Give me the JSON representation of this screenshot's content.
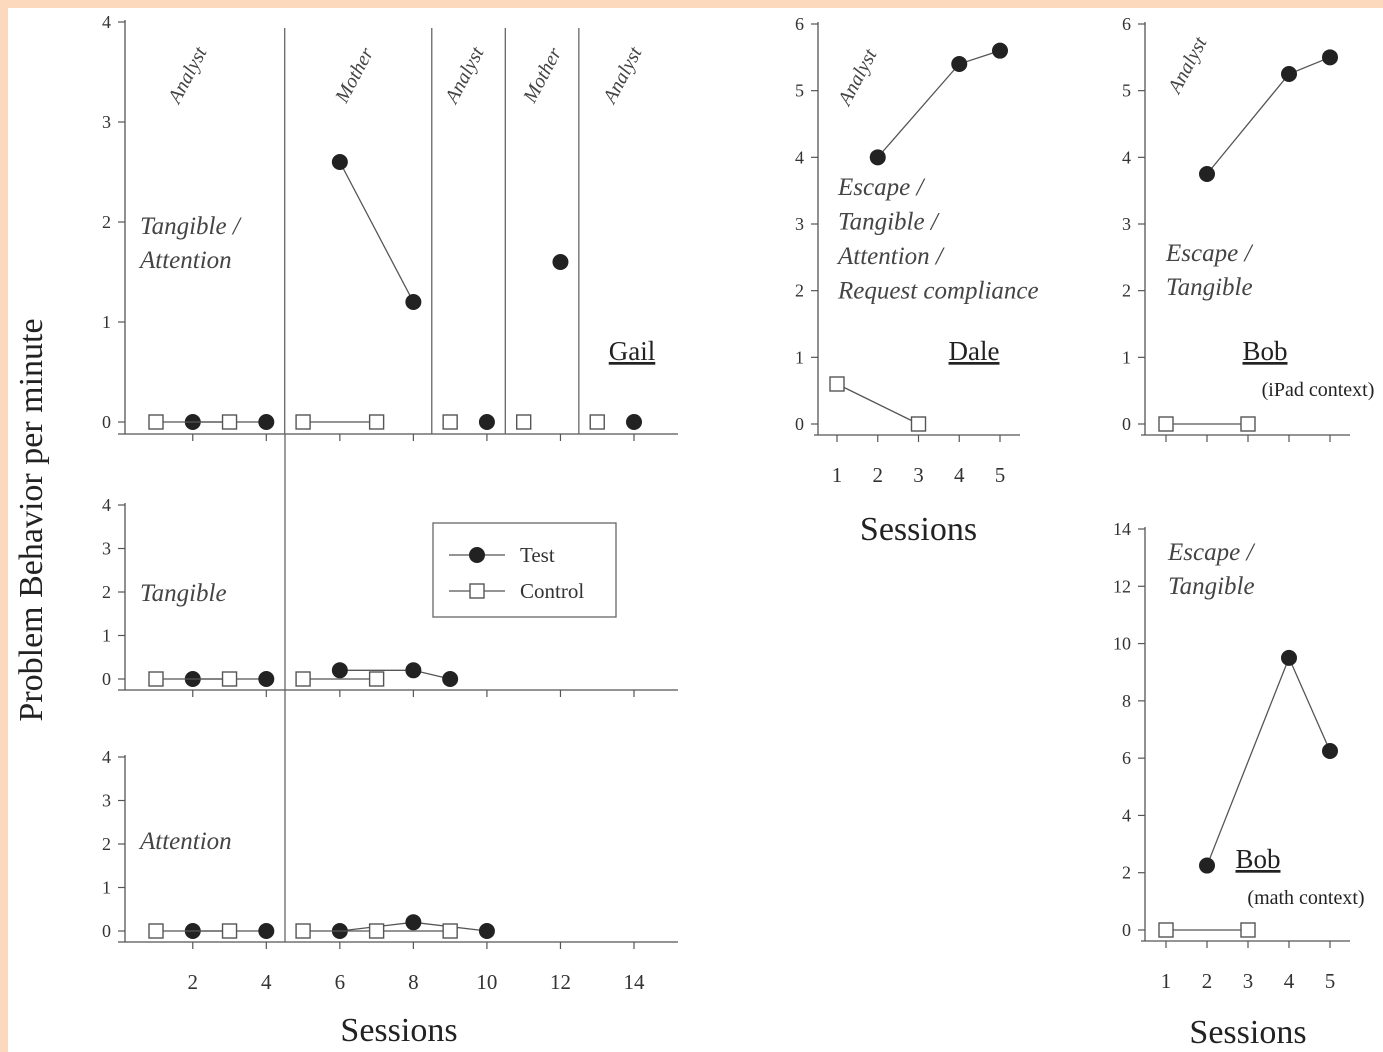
{
  "ylabel": "Problem Behavior per minute",
  "legend": {
    "test": "Test",
    "control": "Control"
  },
  "chart_data": [
    {
      "id": "gail-tangible-attention",
      "type": "scatter",
      "participant": "Gail",
      "condition": "Tangible / Attention",
      "condition_lines": [
        "Tangible /",
        "Attention"
      ],
      "ylim": [
        0,
        4
      ],
      "xlim": [
        0.5,
        15
      ],
      "yticks": [
        0,
        1,
        2,
        3,
        4
      ],
      "phases": [
        {
          "label": "Analyst",
          "x": 1.5
        },
        {
          "label": "Mother",
          "x": 6
        },
        {
          "label": "Analyst",
          "x": 10.5
        },
        {
          "label": "Mother",
          "x": 12
        },
        {
          "label": "Analyst",
          "x": 14
        }
      ],
      "phase_lines": [
        4.5,
        8.5,
        10.5,
        12.5
      ],
      "series": [
        {
          "name": "Test",
          "segments": [
            [
              {
                "x": 2,
                "y": 0
              },
              {
                "x": 4,
                "y": 0
              }
            ],
            [
              {
                "x": 6,
                "y": 2.6
              },
              {
                "x": 8,
                "y": 1.2
              }
            ],
            [
              {
                "x": 10,
                "y": 0
              }
            ],
            [
              {
                "x": 12,
                "y": 1.6
              }
            ],
            [
              {
                "x": 14,
                "y": 0
              }
            ]
          ]
        },
        {
          "name": "Control",
          "segments": [
            [
              {
                "x": 1,
                "y": 0
              },
              {
                "x": 3,
                "y": 0
              }
            ],
            [
              {
                "x": 5,
                "y": 0
              },
              {
                "x": 7,
                "y": 0
              }
            ],
            [
              {
                "x": 9,
                "y": 0
              }
            ],
            [
              {
                "x": 11,
                "y": 0
              }
            ],
            [
              {
                "x": 13,
                "y": 0
              }
            ]
          ]
        }
      ]
    },
    {
      "id": "gail-tangible",
      "type": "scatter",
      "condition": "Tangible",
      "condition_lines": [
        "Tangible"
      ],
      "ylim": [
        0,
        4
      ],
      "xlim": [
        0.5,
        15
      ],
      "yticks": [
        0,
        1,
        2,
        3,
        4
      ],
      "series": [
        {
          "name": "Test",
          "segments": [
            [
              {
                "x": 2,
                "y": 0
              },
              {
                "x": 4,
                "y": 0
              }
            ],
            [
              {
                "x": 6,
                "y": 0.2
              },
              {
                "x": 8,
                "y": 0.2
              },
              {
                "x": 9,
                "y": 0
              }
            ]
          ]
        },
        {
          "name": "Control",
          "segments": [
            [
              {
                "x": 1,
                "y": 0
              },
              {
                "x": 3,
                "y": 0
              }
            ],
            [
              {
                "x": 5,
                "y": 0
              },
              {
                "x": 7,
                "y": 0
              }
            ]
          ]
        }
      ]
    },
    {
      "id": "gail-attention",
      "type": "scatter",
      "condition": "Attention",
      "condition_lines": [
        "Attention"
      ],
      "ylim": [
        0,
        4
      ],
      "xlim": [
        0.5,
        15
      ],
      "yticks": [
        0,
        1,
        2,
        3,
        4
      ],
      "xticks": [
        2,
        4,
        6,
        8,
        10,
        12,
        14
      ],
      "xlabel": "Sessions",
      "series": [
        {
          "name": "Test",
          "segments": [
            [
              {
                "x": 2,
                "y": 0
              },
              {
                "x": 4,
                "y": 0
              }
            ],
            [
              {
                "x": 6,
                "y": 0
              },
              {
                "x": 8,
                "y": 0.2
              },
              {
                "x": 10,
                "y": 0
              }
            ]
          ]
        },
        {
          "name": "Control",
          "segments": [
            [
              {
                "x": 1,
                "y": 0
              },
              {
                "x": 3,
                "y": 0
              }
            ],
            [
              {
                "x": 5,
                "y": 0
              },
              {
                "x": 7,
                "y": 0
              },
              {
                "x": 9,
                "y": 0
              }
            ]
          ]
        }
      ]
    },
    {
      "id": "dale",
      "type": "scatter",
      "participant": "Dale",
      "condition": "Escape / Tangible / Attention / Request compliance",
      "condition_lines": [
        "Escape /",
        "Tangible /",
        "Attention /",
        "Request compliance"
      ],
      "phases": [
        {
          "label": "Analyst",
          "x": 1.6
        }
      ],
      "ylim": [
        0,
        6
      ],
      "xlim": [
        0.5,
        5.5
      ],
      "yticks": [
        0,
        1,
        2,
        3,
        4,
        5,
        6
      ],
      "xticks": [
        1,
        2,
        3,
        4,
        5
      ],
      "xlabel": "Sessions",
      "series": [
        {
          "name": "Test",
          "segments": [
            [
              {
                "x": 2,
                "y": 4
              },
              {
                "x": 4,
                "y": 5.4
              },
              {
                "x": 5,
                "y": 5.6
              }
            ]
          ]
        },
        {
          "name": "Control",
          "segments": [
            [
              {
                "x": 1,
                "y": 0.6
              },
              {
                "x": 3,
                "y": 0
              }
            ]
          ]
        }
      ]
    },
    {
      "id": "bob-ipad",
      "type": "scatter",
      "participant": "Bob",
      "context": "(iPad context)",
      "condition": "Escape / Tangible",
      "condition_lines": [
        "Escape /",
        "Tangible"
      ],
      "phases": [
        {
          "label": "Analyst",
          "x": 1.6
        }
      ],
      "ylim": [
        0,
        6
      ],
      "xlim": [
        0.5,
        5.5
      ],
      "yticks": [
        0,
        1,
        2,
        3,
        4,
        5,
        6
      ],
      "series": [
        {
          "name": "Test",
          "segments": [
            [
              {
                "x": 2,
                "y": 3.75
              },
              {
                "x": 4,
                "y": 5.25
              },
              {
                "x": 5,
                "y": 5.5
              }
            ]
          ]
        },
        {
          "name": "Control",
          "segments": [
            [
              {
                "x": 1,
                "y": 0
              },
              {
                "x": 3,
                "y": 0
              }
            ]
          ]
        }
      ]
    },
    {
      "id": "bob-math",
      "type": "scatter",
      "participant": "Bob",
      "context": "(math context)",
      "condition": "Escape / Tangible",
      "condition_lines": [
        "Escape /",
        "Tangible"
      ],
      "ylim": [
        0,
        14
      ],
      "xlim": [
        0.5,
        5.5
      ],
      "yticks": [
        0,
        2,
        4,
        6,
        8,
        10,
        12,
        14
      ],
      "xticks": [
        1,
        2,
        3,
        4,
        5
      ],
      "xlabel": "Sessions",
      "series": [
        {
          "name": "Test",
          "segments": [
            [
              {
                "x": 2,
                "y": 2.25
              },
              {
                "x": 4,
                "y": 9.5
              },
              {
                "x": 5,
                "y": 6.25
              }
            ]
          ]
        },
        {
          "name": "Control",
          "segments": [
            [
              {
                "x": 1,
                "y": 0
              },
              {
                "x": 3,
                "y": 0
              }
            ]
          ]
        }
      ]
    }
  ]
}
